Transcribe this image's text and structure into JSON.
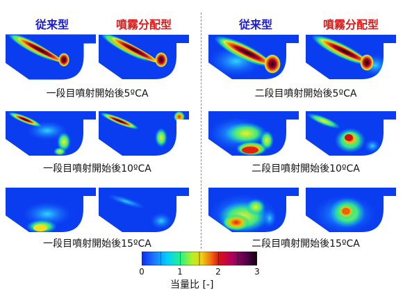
{
  "headers": {
    "conventional": "従来型",
    "spray": "噴霧分配型"
  },
  "captions": {
    "stage1": [
      "一段目噴射開始後5ºCA",
      "一段目噴射開始後10ºCA",
      "一段目噴射開始後15ºCA"
    ],
    "stage2": [
      "二段目噴射開始後5ºCA",
      "二段目噴射開始後10ºCA",
      "二段目噴射開始後15ºCA"
    ]
  },
  "colorbar": {
    "ticks": [
      "0",
      "1",
      "2",
      "3"
    ],
    "label": "当量比 [-]",
    "colors": [
      "#0a2cf0",
      "#1e90ff",
      "#00d8ff",
      "#20f090",
      "#b8f020",
      "#f0d010",
      "#f07010",
      "#e01010",
      "#b00060",
      "#600050",
      "#100010"
    ]
  },
  "colors": {
    "background": "#0a3cf0",
    "header_blue": "#1a1adc",
    "header_red": "#e01818"
  }
}
